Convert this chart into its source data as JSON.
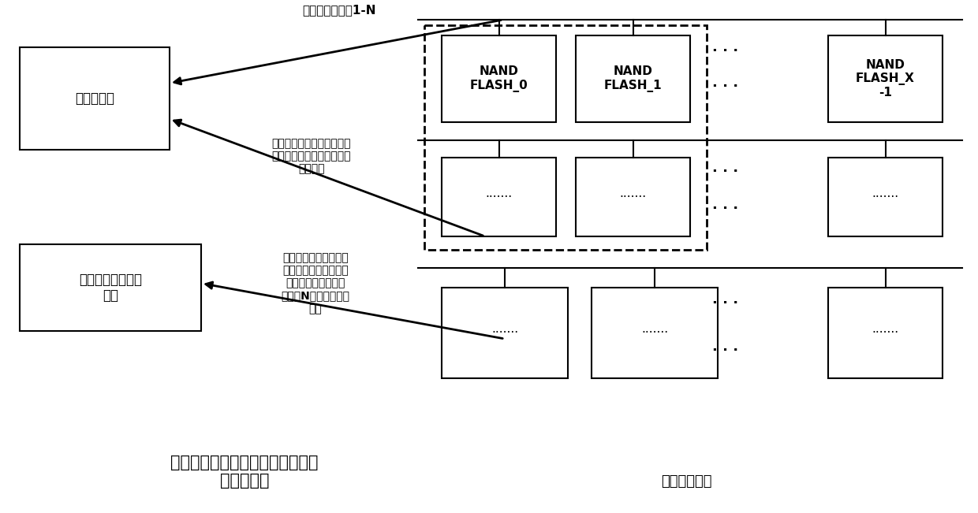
{
  "title_line1": "插入新的物理块及更新传感器变化",
  "title_line2": "情况记录表",
  "subtitle_right": "闪存颗粒阵列",
  "bg_color": "#ffffff",
  "box_color": "#000000",
  "box_fill": "#ffffff",
  "text_color": "#000000",
  "label_block_map": "块级映射表",
  "label_sensor_log": "传感器变化情况记\n录表",
  "label_nand0": "NAND\nFLASH_0",
  "label_nand1": "NAND\nFLASH_1",
  "label_nandx": "NAND\nFLASH_X\n-1",
  "label_dots": "·······",
  "arrow1_text": "原有的块级映射1-N",
  "arrow2_text": "根据需求添加在其他闪存颗\n粒内分配干净的物理块建立\n映射关系",
  "arrow3_text": "记录旧映射表中各物理\n块的最后使用地址偏移\n位及对应的逻辑页号\n（连续N个连续的逻辑\n页）"
}
